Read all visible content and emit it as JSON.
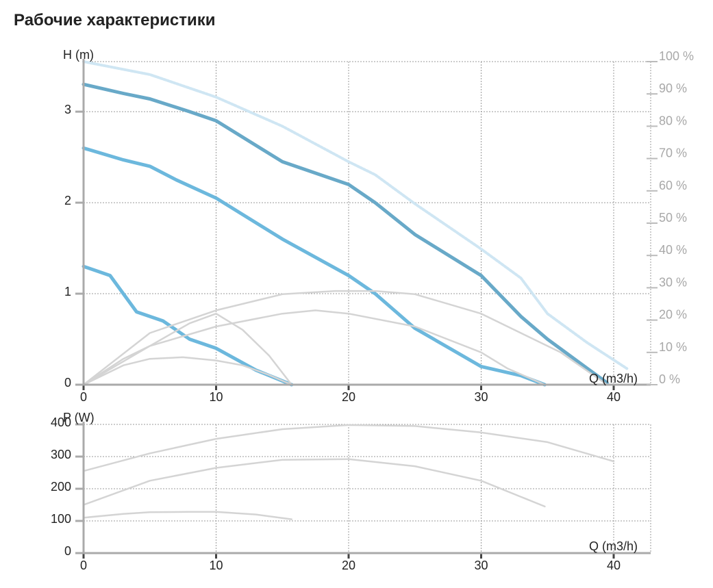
{
  "page": {
    "title": "Рабочие характеристики"
  },
  "colors": {
    "head_curve": "#6cb8dd",
    "head_curve_max": "#68a9c8",
    "efficiency_curve": "#cfe6f3",
    "gray_curve": "#d4d4d4",
    "grid": "#999999",
    "axis": "#999999",
    "pct_text": "#a8a8a8"
  },
  "chart_data": [
    {
      "name": "head-chart",
      "type": "line",
      "xlabel": "Q (m3/h)",
      "ylabel": "H (m)",
      "xlim": [
        0,
        43
      ],
      "ylim": [
        0,
        3.55
      ],
      "x_ticks": [
        "0",
        "10",
        "20",
        "30",
        "40"
      ],
      "y_ticks": [
        "0",
        "1",
        "2",
        "3"
      ],
      "y2lim": [
        0,
        100
      ],
      "y2_ticks": [
        "0 %",
        "10 %",
        "20 %",
        "30 %",
        "40 %",
        "50 %",
        "60 %",
        "70 %",
        "80 %",
        "90 %",
        "100 %"
      ],
      "grid": true,
      "series": [
        {
          "axis": "left",
          "style": "head-max",
          "x": [
            0,
            3,
            5,
            8,
            10,
            15,
            20,
            22,
            25,
            30,
            33,
            35,
            38,
            39.5
          ],
          "y": [
            3.3,
            3.2,
            3.14,
            3.0,
            2.9,
            2.45,
            2.2,
            2.0,
            1.65,
            1.2,
            0.75,
            0.5,
            0.18,
            0.02
          ]
        },
        {
          "axis": "left",
          "style": "head",
          "x": [
            0,
            3,
            5,
            7,
            10,
            15,
            20,
            22,
            25,
            30,
            33,
            34.8
          ],
          "y": [
            2.6,
            2.47,
            2.4,
            2.25,
            2.05,
            1.6,
            1.2,
            1.0,
            0.62,
            0.2,
            0.1,
            0.0
          ]
        },
        {
          "axis": "left",
          "style": "head",
          "x": [
            0,
            2,
            4,
            6,
            8,
            10,
            13,
            15.7
          ],
          "y": [
            1.3,
            1.2,
            0.8,
            0.7,
            0.5,
            0.4,
            0.16,
            0.0
          ]
        },
        {
          "axis": "right",
          "style": "efficiency",
          "x": [
            0,
            5,
            10,
            15,
            20,
            22,
            25,
            30,
            33,
            35,
            38,
            41
          ],
          "y": [
            100,
            96,
            89,
            80,
            69,
            65,
            56,
            42,
            33,
            22,
            13,
            5
          ]
        },
        {
          "axis": "right",
          "style": "gray",
          "x": [
            0,
            5,
            10,
            15,
            19,
            22,
            25,
            30,
            33,
            36,
            39.5
          ],
          "y": [
            0,
            16,
            23,
            28,
            29,
            29,
            28,
            22,
            16,
            10,
            0
          ]
        },
        {
          "axis": "right",
          "style": "gray",
          "x": [
            0,
            5,
            10,
            15,
            17.5,
            20,
            25,
            30,
            32,
            34.8
          ],
          "y": [
            0,
            12,
            18,
            22,
            23,
            22,
            18,
            10,
            5,
            0
          ]
        },
        {
          "axis": "right",
          "style": "gray",
          "x": [
            0,
            3,
            5,
            7.5,
            10,
            12,
            14,
            15.7
          ],
          "y": [
            0,
            6,
            8,
            8.5,
            7.5,
            6,
            3,
            0
          ]
        },
        {
          "axis": "right",
          "style": "gray",
          "x": [
            0,
            3,
            5,
            8,
            10,
            12,
            14,
            15.7
          ],
          "y": [
            0,
            8,
            12,
            19,
            22,
            17,
            9,
            0
          ]
        }
      ]
    },
    {
      "name": "power-chart",
      "type": "line",
      "xlabel": "Q (m3/h)",
      "ylabel": "P (W)",
      "xlim": [
        0,
        43
      ],
      "ylim": [
        0,
        400
      ],
      "x_ticks": [
        "0",
        "10",
        "20",
        "30",
        "40"
      ],
      "y_ticks": [
        "0",
        "100",
        "200",
        "300",
        "400"
      ],
      "grid": true,
      "series": [
        {
          "style": "gray",
          "x": [
            0,
            5,
            10,
            15,
            20,
            25,
            30,
            35,
            40
          ],
          "y": [
            255,
            310,
            355,
            385,
            398,
            395,
            375,
            345,
            285
          ]
        },
        {
          "style": "gray",
          "x": [
            0,
            5,
            10,
            15,
            20,
            25,
            30,
            34.8
          ],
          "y": [
            150,
            225,
            265,
            290,
            292,
            270,
            225,
            145
          ]
        },
        {
          "style": "gray",
          "x": [
            0,
            3,
            5,
            8,
            10,
            13,
            15.7
          ],
          "y": [
            110,
            122,
            127,
            128,
            128,
            120,
            105
          ]
        }
      ]
    }
  ]
}
